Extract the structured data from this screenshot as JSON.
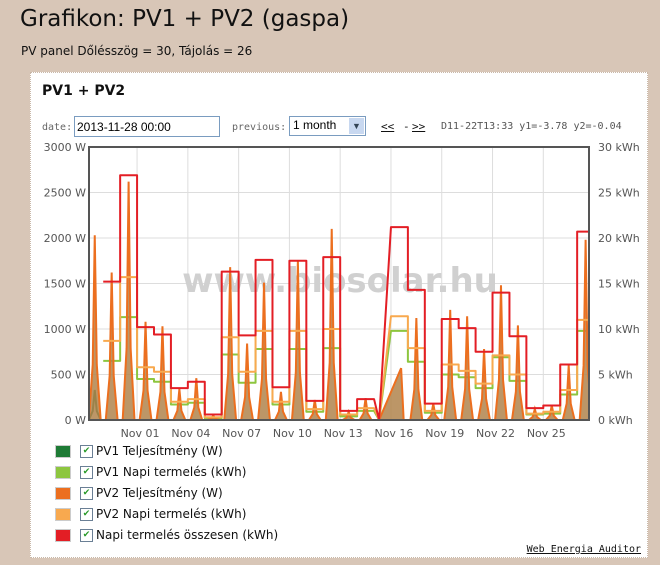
{
  "page": {
    "title": "Grafikon: PV1 + PV2 (gaspa)",
    "subtitle": "PV panel Dőlésszög = 30, Tájolás = 26"
  },
  "panel": {
    "title": "PV1 + PV2",
    "date_label": "date:",
    "date_value": "2013-11-28 00:00",
    "previous_label": "previous:",
    "previous_value": "1 month",
    "nav_prev": "<<",
    "nav_sep": "-",
    "nav_next": ">>",
    "readout": "D11-22T13:33 y1=-3.78 y2=-0.04",
    "watermark": "www.biosolar.hu",
    "footer_link": "Web Energia Auditor"
  },
  "chart_data": {
    "type": "line",
    "title": "PV1 + PV2",
    "y_left": {
      "label": "W",
      "ylim": [
        0,
        3000
      ],
      "ticks": [
        "0 W",
        "500 W",
        "1000 W",
        "1500 W",
        "2000 W",
        "2500 W",
        "3000 W"
      ]
    },
    "y_right": {
      "label": "kWh",
      "ylim": [
        0,
        30
      ],
      "ticks": [
        "0 kWh",
        "5 kWh",
        "10 kWh",
        "15 kWh",
        "20 kWh",
        "25 kWh",
        "30 kWh"
      ]
    },
    "x_ticks": [
      "Nov 01",
      "Nov 04",
      "Nov 07",
      "Nov 10",
      "Nov 13",
      "Nov 16",
      "Nov 19",
      "Nov 22",
      "Nov 25"
    ],
    "x_tick_days_from_nov01": [
      0,
      3,
      6,
      9,
      12,
      15,
      18,
      21,
      24
    ],
    "xlim_days_from_nov01": [
      -2.84,
      26.7
    ],
    "grid": true,
    "legend_placement": "bottom",
    "days": [
      "Oct 29",
      "Oct 30",
      "Oct 31",
      "Nov 01",
      "Nov 02",
      "Nov 03",
      "Nov 04",
      "Nov 05",
      "Nov 06",
      "Nov 07",
      "Nov 08",
      "Nov 09",
      "Nov 10",
      "Nov 11",
      "Nov 12",
      "Nov 13",
      "Nov 14",
      "Nov 15",
      "Nov 16",
      "Nov 17",
      "Nov 18",
      "Nov 19",
      "Nov 20",
      "Nov 21",
      "Nov 22",
      "Nov 23",
      "Nov 24",
      "Nov 25",
      "Nov 26",
      "Nov 27"
    ],
    "first_day_offset": -3,
    "series": [
      {
        "name": "PV1 Teljesítmény (W)",
        "color": "#1e7b35",
        "axis": "left",
        "kind": "power",
        "values": [
          330,
          0,
          0,
          0,
          0,
          0,
          0,
          0,
          0,
          0,
          0,
          0,
          0,
          0,
          0,
          0,
          0,
          null,
          0,
          0,
          0,
          0,
          0,
          0,
          0,
          0,
          0,
          0,
          0,
          0
        ]
      },
      {
        "name": "PV1 Napi termelés (kWh)",
        "color": "#8dc63f",
        "axis": "right",
        "kind": "daily",
        "values": [
          null,
          6.5,
          11.3,
          4.5,
          4.2,
          1.7,
          1.9,
          0.2,
          7.2,
          4.1,
          7.8,
          1.7,
          7.8,
          0.9,
          7.9,
          0.4,
          1.0,
          null,
          9.8,
          6.4,
          0.8,
          5.0,
          4.7,
          3.5,
          6.9,
          4.3,
          0.6,
          0.7,
          2.8,
          9.8
        ]
      },
      {
        "name": "PV2 Teljesítmény (W)",
        "color": "#ec6f1f",
        "axis": "left",
        "kind": "power",
        "values": [
          2030,
          1620,
          2620,
          1080,
          1030,
          340,
          460,
          50,
          1680,
          840,
          1510,
          310,
          1750,
          220,
          2100,
          90,
          240,
          null,
          570,
          1120,
          180,
          1210,
          1140,
          780,
          1480,
          1040,
          120,
          160,
          600,
          1980
        ]
      },
      {
        "name": "PV2 Napi termelés (kWh)",
        "color": "#f8a94f",
        "axis": "right",
        "kind": "daily",
        "values": [
          null,
          8.7,
          15.7,
          5.8,
          5.3,
          2.0,
          2.3,
          0.3,
          9.1,
          5.3,
          9.8,
          2.0,
          9.8,
          1.2,
          10.0,
          0.6,
          1.3,
          null,
          11.4,
          7.9,
          1.0,
          6.1,
          5.4,
          4.0,
          7.1,
          5.0,
          0.7,
          0.9,
          3.3,
          11.0
        ]
      },
      {
        "name": "Napi termelés összesen (kWh)",
        "color": "#e31e25",
        "axis": "right",
        "kind": "daily",
        "values": [
          null,
          15.2,
          26.9,
          10.2,
          9.4,
          3.5,
          4.2,
          0.6,
          16.3,
          9.3,
          17.6,
          3.6,
          17.5,
          2.1,
          17.9,
          1.0,
          2.3,
          null,
          21.2,
          14.3,
          1.8,
          11.1,
          10.1,
          7.5,
          14.0,
          9.2,
          1.3,
          1.6,
          6.1,
          20.7
        ]
      }
    ]
  }
}
